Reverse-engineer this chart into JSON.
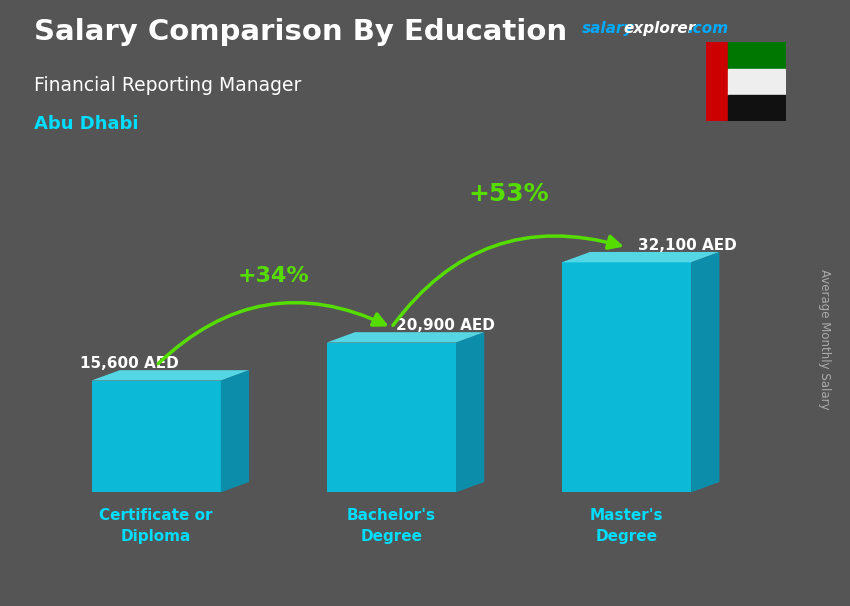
{
  "title_main": "Salary Comparison By Education",
  "title_sub": "Financial Reporting Manager",
  "title_location": "Abu Dhabi",
  "watermark_salary": "salary",
  "watermark_explorer": "explorer",
  "watermark_com": ".com",
  "ylabel": "Average Monthly Salary",
  "categories": [
    "Certificate or\nDiploma",
    "Bachelor's\nDegree",
    "Master's\nDegree"
  ],
  "values": [
    15600,
    20900,
    32100
  ],
  "value_labels": [
    "15,600 AED",
    "20,900 AED",
    "32,100 AED"
  ],
  "pct_labels": [
    "+34%",
    "+53%"
  ],
  "bar_front": "#00ccee",
  "bar_top": "#55eeff",
  "bar_side": "#0099bb",
  "bg_color": "#555555",
  "title_color": "#ffffff",
  "subtitle_color": "#ffffff",
  "location_color": "#00ddff",
  "value_label_color": "#ffffff",
  "pct_color": "#aaff00",
  "arrow_color": "#55dd00",
  "watermark_color1": "#00aaff",
  "watermark_color2": "#ffffff",
  "xtick_color": "#00ddff",
  "ylabel_color": "#aaaaaa",
  "figsize": [
    8.5,
    6.06
  ],
  "dpi": 100
}
